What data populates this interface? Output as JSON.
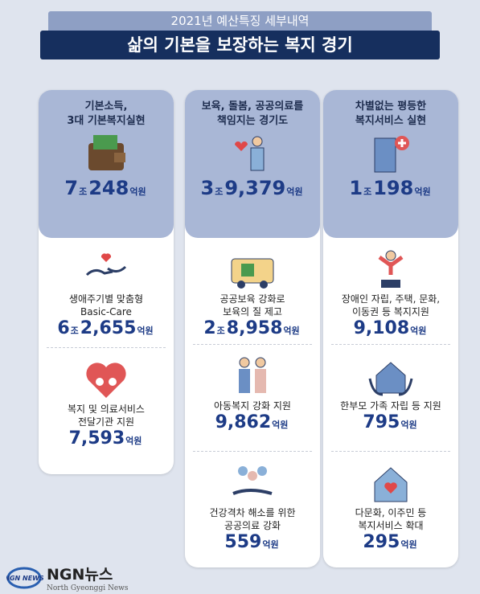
{
  "header": {
    "subtitle": "2021년 예산특징 세부내역",
    "title": "삶의 기본을 보장하는 복지 경기"
  },
  "columns": [
    {
      "heading": [
        "기본소득,",
        "3대 기본복지실현"
      ],
      "amount": [
        "7",
        "조",
        "248",
        "억원"
      ],
      "items": [
        {
          "desc": [
            "생애주기별 맞춤형",
            "Basic-Care"
          ],
          "amount": [
            "6",
            "조",
            "2,655",
            "억원"
          ]
        },
        {
          "desc": [
            "복지 및 의료서비스",
            "전달기관 지원"
          ],
          "amount": [
            "7,593",
            "억원"
          ]
        }
      ]
    },
    {
      "heading": [
        "보육, 돌봄, 공공의료를",
        "책임지는 경기도"
      ],
      "amount": [
        "3",
        "조",
        "9,379",
        "억원"
      ],
      "items": [
        {
          "desc": [
            "공공보육 강화로",
            "보육의 질 제고"
          ],
          "amount": [
            "2",
            "조",
            "8,958",
            "억원"
          ]
        },
        {
          "desc": [
            "아동복지 강화 지원"
          ],
          "amount": [
            "9,862",
            "억원"
          ]
        },
        {
          "desc": [
            "건강격차 해소를 위한",
            "공공의료 강화"
          ],
          "amount": [
            "559",
            "억원"
          ]
        }
      ]
    },
    {
      "heading": [
        "차별없는 평등한",
        "복지서비스 실현"
      ],
      "amount": [
        "1",
        "조",
        "198",
        "억원"
      ],
      "items": [
        {
          "desc": [
            "장애인 자립, 주택, 문화,",
            "이동권 등 복지지원"
          ],
          "amount": [
            "9,108",
            "억원"
          ]
        },
        {
          "desc": [
            "한부모 가족 자립 등 지원"
          ],
          "amount": [
            "795",
            "억원"
          ]
        },
        {
          "desc": [
            "다문화, 이주민 등",
            "복지서비스 확대"
          ],
          "amount": [
            "295",
            "억원"
          ]
        }
      ]
    }
  ],
  "footer": {
    "brand": "NGN뉴스",
    "tagline": "North Gyeonggi News",
    "logo_text": "NGN NEWS"
  }
}
